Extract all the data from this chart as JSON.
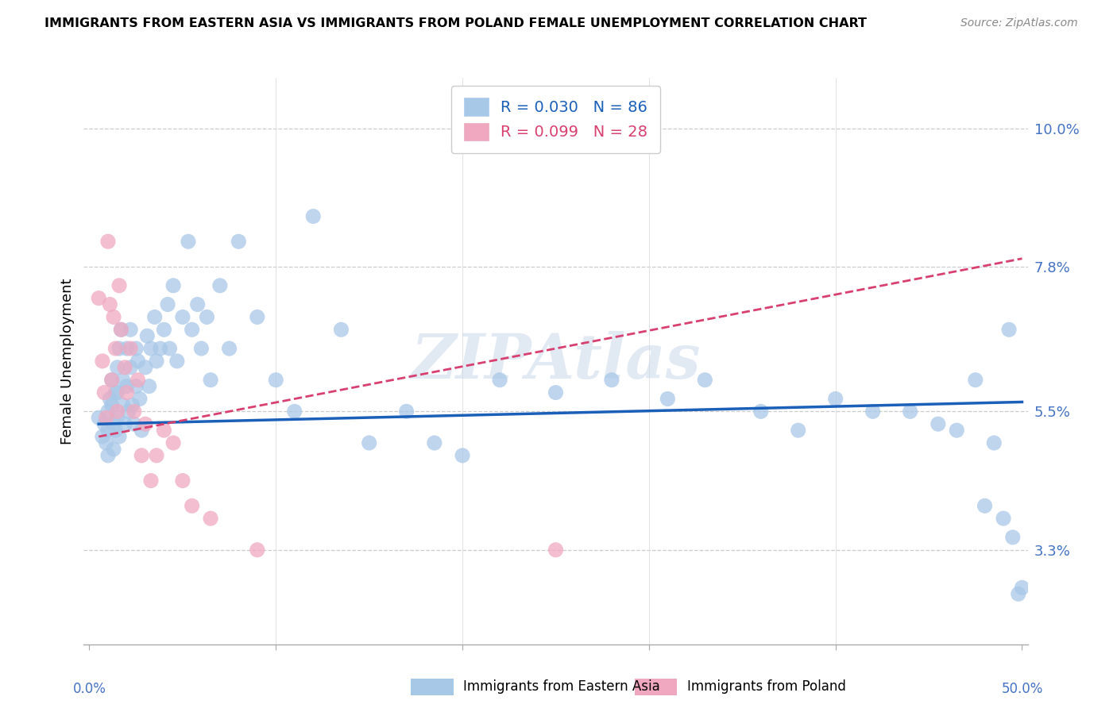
{
  "title": "IMMIGRANTS FROM EASTERN ASIA VS IMMIGRANTS FROM POLAND FEMALE UNEMPLOYMENT CORRELATION CHART",
  "source": "Source: ZipAtlas.com",
  "ylabel": "Female Unemployment",
  "ytick_labels": [
    "3.3%",
    "5.5%",
    "7.8%",
    "10.0%"
  ],
  "ytick_values": [
    0.033,
    0.055,
    0.078,
    0.1
  ],
  "xlim": [
    -0.003,
    0.503
  ],
  "ylim": [
    0.018,
    0.108
  ],
  "R_blue": 0.03,
  "N_blue": 86,
  "R_pink": 0.099,
  "N_pink": 28,
  "blue_color": "#A8C8E8",
  "blue_line_color": "#1A5FB8",
  "pink_color": "#F0A8C0",
  "pink_line_color": "#D84070",
  "legend_label_blue": "Immigrants from Eastern Asia",
  "legend_label_pink": "Immigrants from Poland",
  "watermark": "ZIPAtlas",
  "blue_x": [
    0.005,
    0.007,
    0.008,
    0.009,
    0.01,
    0.01,
    0.01,
    0.011,
    0.012,
    0.012,
    0.013,
    0.013,
    0.014,
    0.014,
    0.015,
    0.015,
    0.015,
    0.016,
    0.016,
    0.017,
    0.018,
    0.018,
    0.019,
    0.02,
    0.02,
    0.021,
    0.022,
    0.022,
    0.023,
    0.024,
    0.025,
    0.025,
    0.026,
    0.027,
    0.028,
    0.03,
    0.031,
    0.032,
    0.033,
    0.035,
    0.036,
    0.038,
    0.04,
    0.042,
    0.043,
    0.045,
    0.047,
    0.05,
    0.053,
    0.055,
    0.058,
    0.06,
    0.063,
    0.065,
    0.07,
    0.075,
    0.08,
    0.09,
    0.1,
    0.11,
    0.12,
    0.135,
    0.15,
    0.17,
    0.185,
    0.2,
    0.22,
    0.25,
    0.28,
    0.31,
    0.33,
    0.36,
    0.38,
    0.4,
    0.42,
    0.44,
    0.455,
    0.465,
    0.475,
    0.48,
    0.485,
    0.49,
    0.493,
    0.495,
    0.498,
    0.5
  ],
  "blue_y": [
    0.054,
    0.051,
    0.053,
    0.05,
    0.055,
    0.052,
    0.048,
    0.057,
    0.06,
    0.056,
    0.053,
    0.049,
    0.058,
    0.052,
    0.062,
    0.058,
    0.054,
    0.065,
    0.051,
    0.068,
    0.06,
    0.056,
    0.053,
    0.065,
    0.059,
    0.055,
    0.068,
    0.062,
    0.056,
    0.053,
    0.065,
    0.059,
    0.063,
    0.057,
    0.052,
    0.062,
    0.067,
    0.059,
    0.065,
    0.07,
    0.063,
    0.065,
    0.068,
    0.072,
    0.065,
    0.075,
    0.063,
    0.07,
    0.082,
    0.068,
    0.072,
    0.065,
    0.07,
    0.06,
    0.075,
    0.065,
    0.082,
    0.07,
    0.06,
    0.055,
    0.086,
    0.068,
    0.05,
    0.055,
    0.05,
    0.048,
    0.06,
    0.058,
    0.06,
    0.057,
    0.06,
    0.055,
    0.052,
    0.057,
    0.055,
    0.055,
    0.053,
    0.052,
    0.06,
    0.04,
    0.05,
    0.038,
    0.068,
    0.035,
    0.026,
    0.027
  ],
  "pink_x": [
    0.005,
    0.007,
    0.008,
    0.009,
    0.01,
    0.011,
    0.012,
    0.013,
    0.014,
    0.015,
    0.016,
    0.017,
    0.019,
    0.02,
    0.022,
    0.024,
    0.026,
    0.028,
    0.03,
    0.033,
    0.036,
    0.04,
    0.045,
    0.05,
    0.055,
    0.065,
    0.09,
    0.25
  ],
  "pink_y": [
    0.073,
    0.063,
    0.058,
    0.054,
    0.082,
    0.072,
    0.06,
    0.07,
    0.065,
    0.055,
    0.075,
    0.068,
    0.062,
    0.058,
    0.065,
    0.055,
    0.06,
    0.048,
    0.053,
    0.044,
    0.048,
    0.052,
    0.05,
    0.044,
    0.04,
    0.038,
    0.033,
    0.033
  ],
  "blue_trend_x": [
    0.005,
    0.5
  ],
  "blue_trend_y": [
    0.053,
    0.0565
  ],
  "pink_trend_x": [
    0.005,
    0.25
  ],
  "pink_trend_y": [
    0.051,
    0.065
  ]
}
